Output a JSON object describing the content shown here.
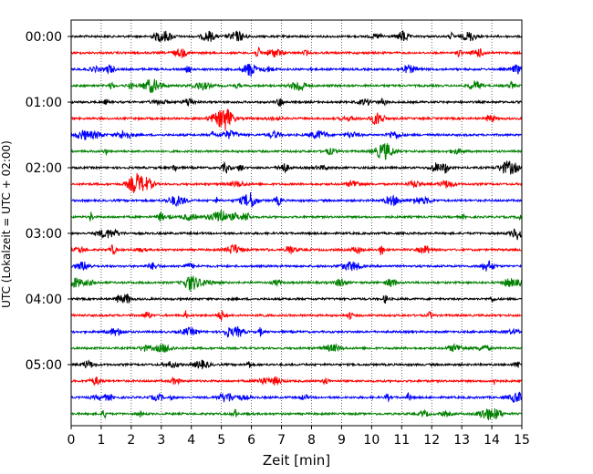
{
  "chart_data": {
    "type": "line",
    "subtype": "helicorder",
    "xlabel": "Zeit  [min]",
    "ylabel": "UTC (Lokalzeit = UTC + 02:00)",
    "xlim": [
      0,
      15
    ],
    "x_ticks": [
      0,
      1,
      2,
      3,
      4,
      5,
      6,
      7,
      8,
      9,
      10,
      11,
      12,
      13,
      14,
      15
    ],
    "x_tick_labels": [
      "0",
      "1",
      "2",
      "3",
      "4",
      "5",
      "6",
      "7",
      "8",
      "9",
      "10",
      "11",
      "12",
      "13",
      "14",
      "15"
    ],
    "y_tick_labels": [
      "00:00",
      "01:00",
      "02:00",
      "03:00",
      "04:00",
      "05:00"
    ],
    "y_tick_trace_index": [
      0,
      4,
      8,
      12,
      16,
      20
    ],
    "trace_count": 24,
    "minutes_per_trace": 15,
    "trace_colors": [
      "#000000",
      "#ff0000",
      "#0000ff",
      "#008000"
    ],
    "vertical_grid": true,
    "grid_style": "dotted",
    "legend": "none"
  }
}
